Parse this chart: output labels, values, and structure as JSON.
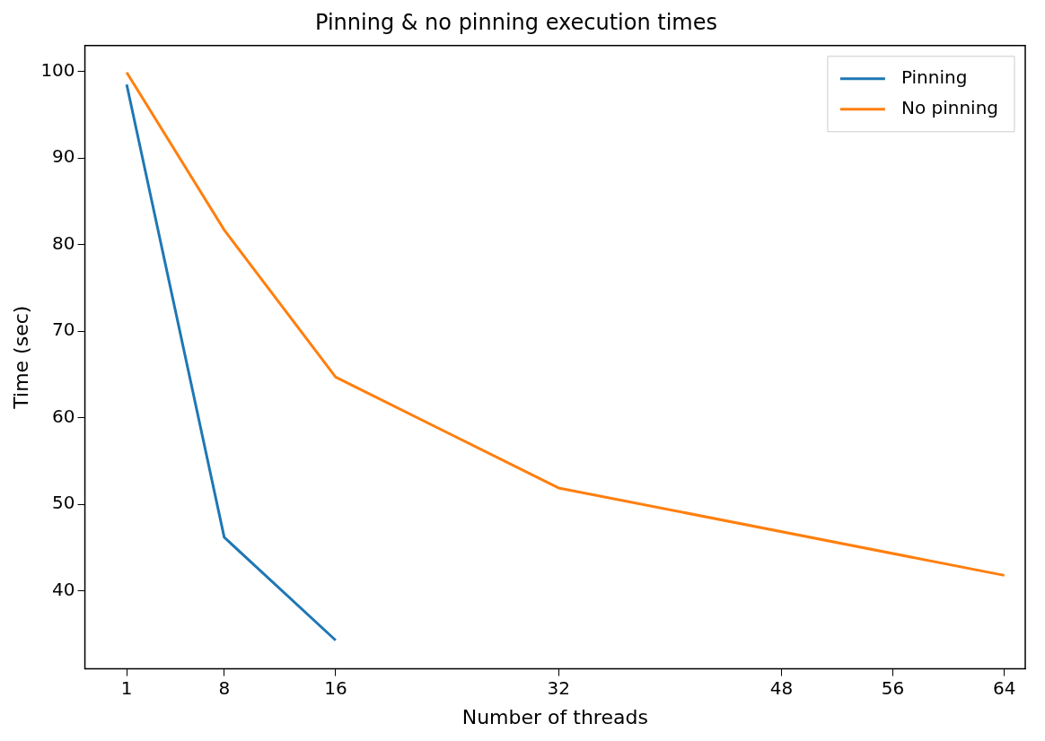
{
  "chart_data": {
    "type": "line",
    "title": "Pinning & no pinning execution times",
    "xlabel": "Number of threads",
    "ylabel": "Time (sec)",
    "series": [
      {
        "name": "Pinning",
        "color": "#1f77b4",
        "x": [
          1,
          8,
          16
        ],
        "values": [
          98.5,
          46.2,
          34.3
        ]
      },
      {
        "name": "No pinning",
        "color": "#ff7f0e",
        "x": [
          1,
          8,
          16,
          32,
          64
        ],
        "values": [
          99.9,
          81.7,
          64.7,
          51.9,
          41.8
        ]
      }
    ],
    "xlim": [
      -2,
      65.5
    ],
    "xticks": [
      1,
      8,
      16,
      32,
      48,
      56,
      64
    ],
    "ylim": [
      31,
      103
    ],
    "yticks": [
      40,
      50,
      60,
      70,
      80,
      90,
      100
    ],
    "grid": false,
    "legend": "top right",
    "marker": "none",
    "line_style": "solid"
  }
}
